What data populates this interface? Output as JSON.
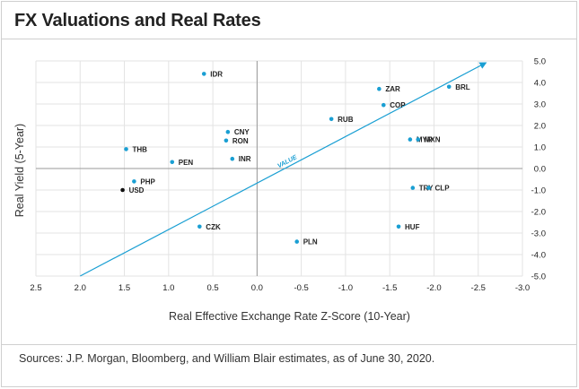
{
  "title": "FX Valuations and Real Rates",
  "source": "Sources: J.P. Morgan, Bloomberg, and William Blair estimates, as of June 30, 2020.",
  "chart_data": {
    "type": "scatter",
    "title": "FX Valuations and Real Rates",
    "xlabel": "Real Effective Exchange Rate Z-Score (10-Year)",
    "ylabel": "Real Yield (5-Year)",
    "x_reversed": true,
    "xlim": [
      2.5,
      -3.0
    ],
    "ylim": [
      -5.0,
      5.0
    ],
    "xticks": [
      2.5,
      2.0,
      1.5,
      1.0,
      0.5,
      0.0,
      -0.5,
      -1.0,
      -1.5,
      -2.0,
      -2.5,
      -3.0
    ],
    "xtick_labels": [
      "2.5",
      "2.0",
      "1.5",
      "1.0",
      "0.5",
      "0.0",
      "-0.5",
      "-1.0",
      "-1.5",
      "-2.0",
      "-2.5",
      "-3.0"
    ],
    "yticks": [
      5,
      4,
      3,
      2,
      1,
      0,
      -1,
      -2,
      -3,
      -4,
      -5
    ],
    "ytick_labels": [
      "5.0",
      "4.0",
      "3.0",
      "2.0",
      "1.0",
      "0.0",
      "-1.0",
      "-2.0",
      "-3.0",
      "-4.0",
      "-5.0"
    ],
    "grid": true,
    "colors": {
      "point": "#1a9fd3",
      "highlight": "#111111",
      "arrow": "#1a9fd3",
      "grid": "#e3e3e3"
    },
    "points": [
      {
        "label": "IDR",
        "x": 0.6,
        "y": 4.4
      },
      {
        "label": "ZAR",
        "x": -1.38,
        "y": 3.7
      },
      {
        "label": "BRL",
        "x": -2.17,
        "y": 3.8
      },
      {
        "label": "COP",
        "x": -1.43,
        "y": 2.95
      },
      {
        "label": "RUB",
        "x": -0.84,
        "y": 2.3
      },
      {
        "label": "CNY",
        "x": 0.33,
        "y": 1.7
      },
      {
        "label": "RON",
        "x": 0.35,
        "y": 1.3
      },
      {
        "label": "MYR",
        "x": -1.73,
        "y": 1.35
      },
      {
        "label": "MXN",
        "x": -1.82,
        "y": 1.35
      },
      {
        "label": "THB",
        "x": 1.48,
        "y": 0.9
      },
      {
        "label": "INR",
        "x": 0.28,
        "y": 0.45
      },
      {
        "label": "PEN",
        "x": 0.96,
        "y": 0.3
      },
      {
        "label": "PHP",
        "x": 1.39,
        "y": -0.6
      },
      {
        "label": "USD",
        "x": 1.52,
        "y": -1.0,
        "highlight": true
      },
      {
        "label": "TRY",
        "x": -1.76,
        "y": -0.9
      },
      {
        "label": "CLP",
        "x": -1.94,
        "y": -0.9
      },
      {
        "label": "CZK",
        "x": 0.65,
        "y": -2.7
      },
      {
        "label": "HUF",
        "x": -1.6,
        "y": -2.7
      },
      {
        "label": "PLN",
        "x": -0.45,
        "y": -3.4
      }
    ],
    "trend_arrow": {
      "label": "VALUE",
      "from": {
        "x": 2.0,
        "y": -5.0
      },
      "to": {
        "x": -2.58,
        "y": 4.9
      }
    }
  }
}
